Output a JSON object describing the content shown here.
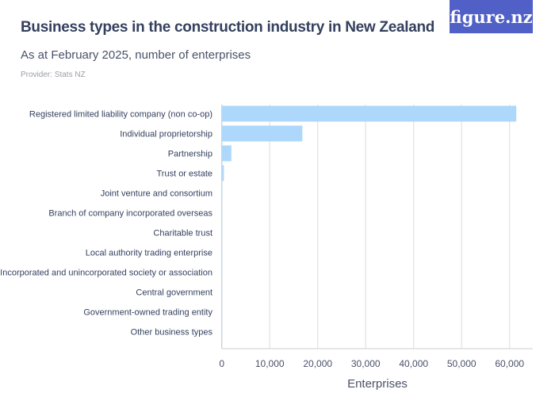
{
  "header": {
    "title": "Business types in the construction industry in New Zealand",
    "subtitle": "As at February 2025, number of enterprises",
    "provider": "Provider: Stats NZ",
    "logo": "figure.nz"
  },
  "chart_data": {
    "type": "bar",
    "orientation": "horizontal",
    "categories": [
      "Registered limited liability company (non co-op)",
      "Individual proprietorship",
      "Partnership",
      "Trust or estate",
      "Joint venture and consortium",
      "Branch of company incorporated overseas",
      "Charitable trust",
      "Local authority trading enterprise",
      "Incorporated and unincorporated society or association",
      "Central government",
      "Government-owned trading entity",
      "Other business types"
    ],
    "values": [
      61400,
      16800,
      2000,
      450,
      100,
      30,
      20,
      10,
      10,
      5,
      5,
      5
    ],
    "xlabel": "Enterprises",
    "xlim": [
      0,
      65000
    ],
    "xticks": [
      0,
      10000,
      20000,
      30000,
      40000,
      50000,
      60000
    ],
    "xtick_labels": [
      "0",
      "10,000",
      "20,000",
      "30,000",
      "40,000",
      "50,000",
      "60,000"
    ],
    "grid": true,
    "color": "#add8fb"
  }
}
